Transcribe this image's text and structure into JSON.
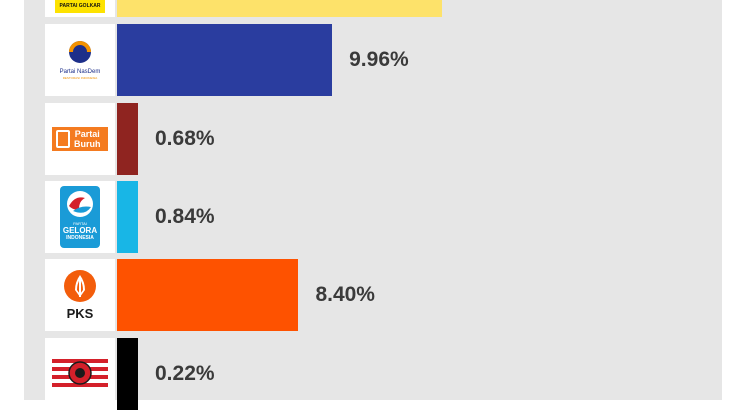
{
  "chart_data": {
    "type": "bar",
    "orientation": "horizontal",
    "categories": [
      "Partai Golkar",
      "Partai NasDem",
      "Partai Buruh",
      "Partai Gelora Indonesia",
      "PKS",
      "PKN"
    ],
    "values": [
      null,
      9.96,
      0.68,
      0.84,
      8.4,
      0.22
    ],
    "value_labels": [
      "",
      "9.96%",
      "0.68%",
      "0.84%",
      "8.40%",
      "0.22%"
    ],
    "bar_colors": [
      "#fde26a",
      "#2a3d9f",
      "#8f2420",
      "#18b6e6",
      "#fe5200",
      "#000000"
    ],
    "title": "",
    "xlabel": "",
    "ylabel": "",
    "grid": false
  },
  "logos": {
    "golkar": {
      "text": "PARTAI GOLKAR",
      "color": "#fde200",
      "icon": "golkar-logo"
    },
    "nasdem": {
      "line1": "Partai NasDem",
      "line2": "RESTORASI INDONESIA",
      "color": "#1d2f8a",
      "accent": "#f39200",
      "icon": "nasdem-logo"
    },
    "buruh": {
      "line1": "Partai",
      "line2": "Buruh",
      "color": "#f47b20",
      "icon": "partai-buruh-logo"
    },
    "gelora": {
      "line1": "PARTAI",
      "line2": "GELORA",
      "line3": "INDONESIA",
      "color": "#1a9bd7",
      "icon": "gelora-logo"
    },
    "pks": {
      "text": "PKS",
      "color": "#f35d0b",
      "icon": "pks-logo"
    },
    "pkn": {
      "color": "#d4202a",
      "icon": "pkn-logo"
    }
  }
}
